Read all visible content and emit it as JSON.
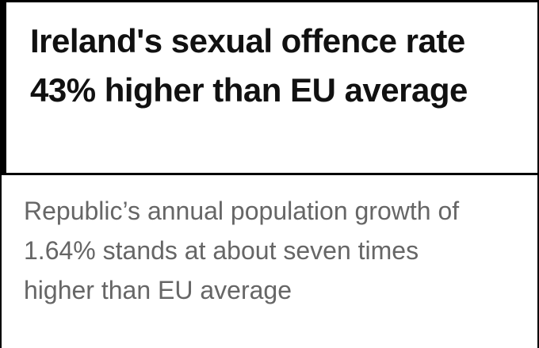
{
  "header": {
    "title": "Ireland's sexual offence rate 43% higher than EU average"
  },
  "subheading": "Republic’s annual population growth of 1.64% stands at about seven times higher than EU average"
}
